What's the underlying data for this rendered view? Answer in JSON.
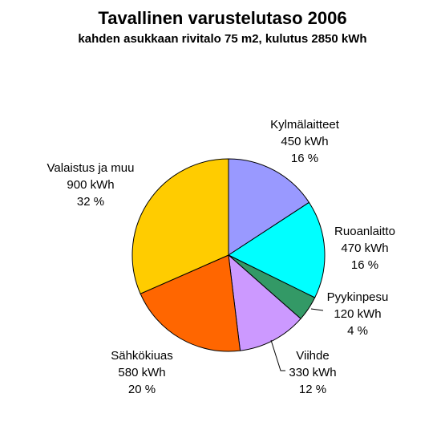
{
  "chart_data": {
    "type": "pie",
    "title": "Tavallinen varustelutaso 2006",
    "subtitle": "kahden asukkaan rivitalo 75 m2, kulutus 2850 kWh",
    "slices": [
      {
        "name": "Kylmälaitteet",
        "value": 450,
        "value_label": "450 kWh",
        "percent_label": "16 %",
        "color": "#9999ff"
      },
      {
        "name": "Ruoanlaitto",
        "value": 470,
        "value_label": "470 kWh",
        "percent_label": "16 %",
        "color": "#00ffff"
      },
      {
        "name": "Pyykinpesu",
        "value": 120,
        "value_label": "120 kWh",
        "percent_label": "4 %",
        "color": "#339966"
      },
      {
        "name": "Viihde",
        "value": 330,
        "value_label": "330 kWh",
        "percent_label": "12 %",
        "color": "#cc99ff"
      },
      {
        "name": "Sähkökiuas",
        "value": 580,
        "value_label": "580 kWh",
        "percent_label": "20 %",
        "color": "#ff6600"
      },
      {
        "name": "Valaistus ja muu",
        "value": 900,
        "value_label": "900 kWh",
        "percent_label": "32 %",
        "color": "#ffcc00"
      }
    ]
  }
}
